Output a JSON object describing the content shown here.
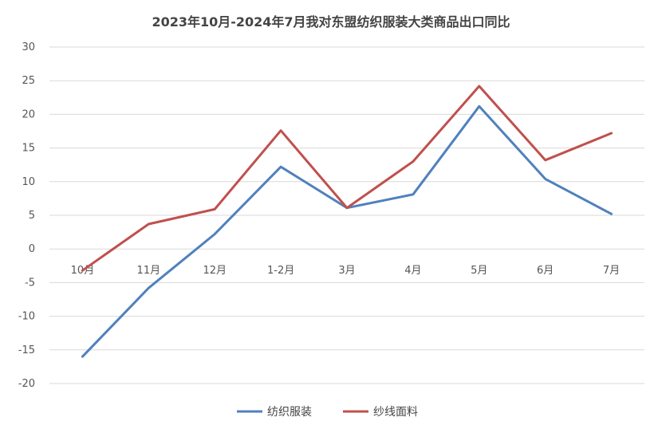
{
  "chart_data": {
    "type": "line",
    "title": "2023年10月-2024年7月我对东盟纺织服装大类商品出口同比",
    "xlabel": "",
    "ylabel": "",
    "categories": [
      "10月",
      "11月",
      "12月",
      "1-2月",
      "3月",
      "4月",
      "5月",
      "6月",
      "7月"
    ],
    "ylim": [
      -20,
      30
    ],
    "yticks": [
      30,
      25,
      20,
      15,
      10,
      5,
      0,
      -5,
      -10,
      -15,
      -20
    ],
    "grid": true,
    "legend_position": "bottom",
    "series": [
      {
        "name": "纺织服装",
        "color": "#4f81bd",
        "values": [
          -16.0,
          -5.8,
          2.2,
          12.2,
          6.1,
          8.1,
          21.2,
          10.4,
          5.2
        ]
      },
      {
        "name": "纱线面料",
        "color": "#c0504d",
        "values": [
          -3.2,
          3.7,
          5.9,
          17.6,
          6.1,
          13.0,
          24.2,
          13.2,
          17.2
        ]
      }
    ]
  }
}
